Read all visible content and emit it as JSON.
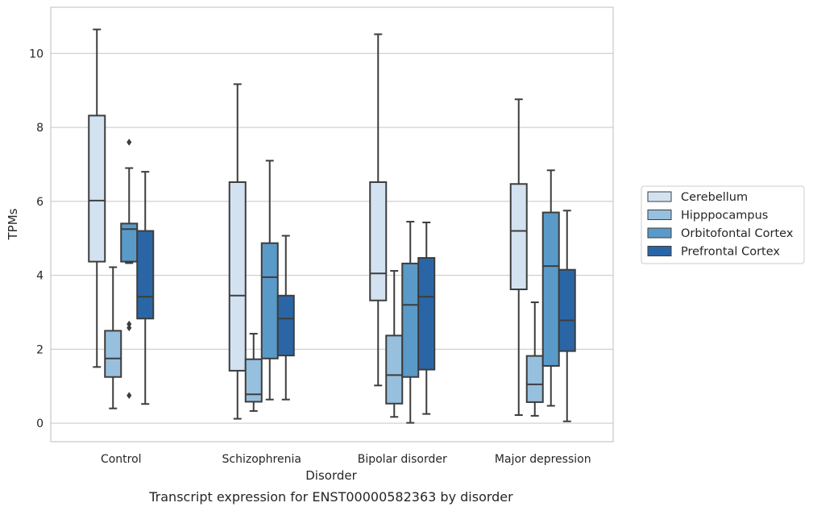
{
  "chart_data": {
    "type": "boxplot",
    "title": "",
    "caption": "Transcript expression for ENST00000582363 by disorder",
    "xlabel": "Disorder",
    "ylabel": "TPMs",
    "ylim": [
      -0.5,
      11.25
    ],
    "yticks": [
      0,
      2,
      4,
      6,
      8,
      10
    ],
    "grid": "horizontal",
    "legend_position": "right",
    "categories": [
      "Control",
      "Schizophrenia",
      "Bipolar disorder",
      "Major depression"
    ],
    "series": [
      {
        "name": "Cerebellum",
        "color": "#d3e2f1",
        "boxes": [
          {
            "whislo": 1.52,
            "q1": 4.37,
            "med": 6.02,
            "q3": 8.32,
            "whishi": 10.65,
            "fliers": []
          },
          {
            "whislo": 0.12,
            "q1": 1.42,
            "med": 3.45,
            "q3": 6.52,
            "whishi": 9.17,
            "fliers": []
          },
          {
            "whislo": 1.02,
            "q1": 3.32,
            "med": 4.05,
            "q3": 6.52,
            "whishi": 10.52,
            "fliers": []
          },
          {
            "whislo": 0.22,
            "q1": 3.62,
            "med": 5.2,
            "q3": 6.47,
            "whishi": 8.76,
            "fliers": []
          }
        ]
      },
      {
        "name": "Hipppocampus",
        "color": "#97c0de",
        "boxes": [
          {
            "whislo": 0.4,
            "q1": 1.25,
            "med": 1.75,
            "q3": 2.5,
            "whishi": 4.22,
            "fliers": []
          },
          {
            "whislo": 0.33,
            "q1": 0.58,
            "med": 0.78,
            "q3": 1.73,
            "whishi": 2.42,
            "fliers": []
          },
          {
            "whislo": 0.17,
            "q1": 0.53,
            "med": 1.3,
            "q3": 2.37,
            "whishi": 4.12,
            "fliers": []
          },
          {
            "whislo": 0.2,
            "q1": 0.57,
            "med": 1.05,
            "q3": 1.82,
            "whishi": 3.27,
            "fliers": []
          }
        ]
      },
      {
        "name": "Orbitofontal Cortex",
        "color": "#5a9ac8",
        "boxes": [
          {
            "whislo": 4.33,
            "q1": 4.37,
            "med": 5.25,
            "q3": 5.4,
            "whishi": 6.9,
            "fliers": [
              7.6,
              2.68,
              2.58,
              0.75
            ]
          },
          {
            "whislo": 0.64,
            "q1": 1.75,
            "med": 3.95,
            "q3": 4.87,
            "whishi": 7.1,
            "fliers": []
          },
          {
            "whislo": 0.01,
            "q1": 1.25,
            "med": 3.2,
            "q3": 4.32,
            "whishi": 5.45,
            "fliers": []
          },
          {
            "whislo": 0.47,
            "q1": 1.55,
            "med": 4.25,
            "q3": 5.7,
            "whishi": 6.84,
            "fliers": []
          }
        ]
      },
      {
        "name": "Prefrontal Cortex",
        "color": "#2a66a6",
        "boxes": [
          {
            "whislo": 0.52,
            "q1": 2.83,
            "med": 3.42,
            "q3": 5.2,
            "whishi": 6.8,
            "fliers": []
          },
          {
            "whislo": 0.64,
            "q1": 1.83,
            "med": 2.83,
            "q3": 3.45,
            "whishi": 5.07,
            "fliers": []
          },
          {
            "whislo": 0.25,
            "q1": 1.45,
            "med": 3.42,
            "q3": 4.47,
            "whishi": 5.43,
            "fliers": []
          },
          {
            "whislo": 0.05,
            "q1": 1.95,
            "med": 2.78,
            "q3": 4.15,
            "whishi": 5.75,
            "fliers": []
          }
        ]
      }
    ]
  }
}
